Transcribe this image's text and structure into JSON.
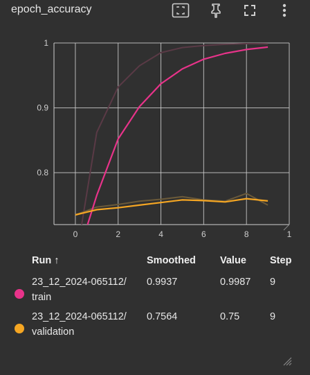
{
  "header": {
    "title": "epoch_accuracy",
    "icons": [
      "fit-to-data-icon",
      "pin-icon",
      "fullscreen-icon",
      "more-vert-icon"
    ]
  },
  "colors": {
    "train": "#e8338a",
    "train_raw": "#5a3a46",
    "validation": "#f5a623",
    "validation_raw": "#6b5a3a",
    "grid": "#d0d0d0",
    "background": "#303030"
  },
  "chart_data": {
    "type": "line",
    "title": "",
    "xlabel": "",
    "ylabel": "",
    "xlim": [
      -1,
      10
    ],
    "ylim": [
      0.72,
      1.0
    ],
    "x_ticks": [
      "0",
      "2",
      "4",
      "6",
      "8",
      "1"
    ],
    "y_ticks": [
      "0.8",
      "0.9",
      "1"
    ],
    "grid": true,
    "series": [
      {
        "name": "23_12_2024-065112/train",
        "kind": "smoothed",
        "x": [
          0,
          1,
          2,
          3,
          4,
          5,
          6,
          7,
          8,
          9
        ],
        "y": [
          0.66,
          0.765,
          0.852,
          0.902,
          0.937,
          0.96,
          0.975,
          0.984,
          0.99,
          0.9937
        ]
      },
      {
        "name": "23_12_2024-065112/train",
        "kind": "raw",
        "x": [
          0,
          1,
          2,
          3,
          4,
          5,
          6,
          7,
          8,
          9
        ],
        "y": [
          0.66,
          0.862,
          0.932,
          0.965,
          0.985,
          0.993,
          0.996,
          0.998,
          0.999,
          0.9987
        ]
      },
      {
        "name": "23_12_2024-065112/validation",
        "kind": "smoothed",
        "x": [
          0,
          1,
          2,
          3,
          4,
          5,
          6,
          7,
          8,
          9
        ],
        "y": [
          0.735,
          0.743,
          0.746,
          0.75,
          0.754,
          0.758,
          0.757,
          0.755,
          0.76,
          0.7564
        ]
      },
      {
        "name": "23_12_2024-065112/validation",
        "kind": "raw",
        "x": [
          0,
          1,
          2,
          3,
          4,
          5,
          6,
          7,
          8,
          9
        ],
        "y": [
          0.735,
          0.747,
          0.751,
          0.756,
          0.759,
          0.763,
          0.758,
          0.756,
          0.768,
          0.75
        ]
      }
    ]
  },
  "table": {
    "headers": {
      "run": "Run ↑",
      "smoothed": "Smoothed",
      "value": "Value",
      "step": "Step"
    },
    "rows": [
      {
        "run_line1": "23_12_2024-065112/",
        "run_line2": "train",
        "smoothed": "0.9937",
        "value": "0.9987",
        "step": "9"
      },
      {
        "run_line1": "23_12_2024-065112/",
        "run_line2": "validation",
        "smoothed": "0.7564",
        "value": "0.75",
        "step": "9"
      }
    ]
  }
}
